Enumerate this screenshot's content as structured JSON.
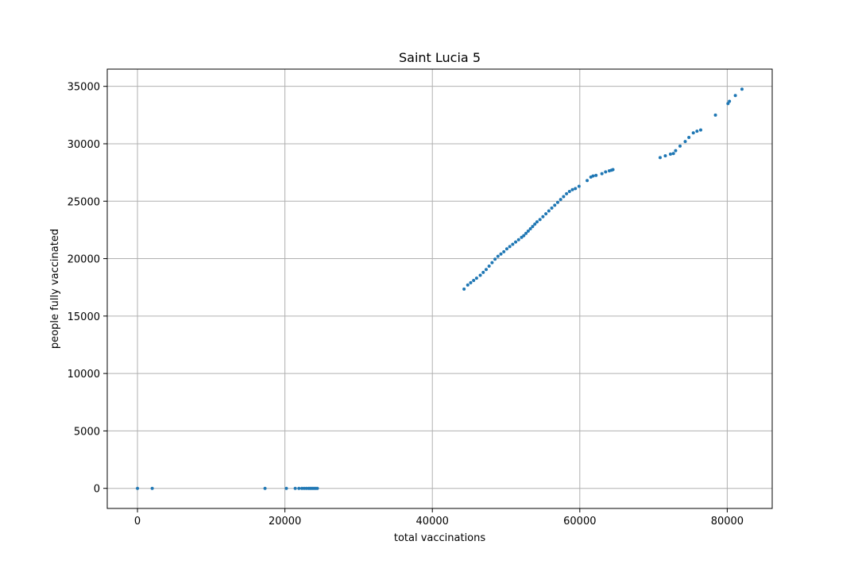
{
  "chart_data": {
    "type": "scatter",
    "title": "Saint Lucia 5",
    "xlabel": "total vaccinations",
    "ylabel": "people fully vaccinated",
    "xlim": [
      -4100,
      86100
    ],
    "ylim": [
      -1750,
      36500
    ],
    "xticks": [
      0,
      20000,
      40000,
      60000,
      80000
    ],
    "yticks": [
      0,
      5000,
      10000,
      15000,
      20000,
      25000,
      30000,
      35000
    ],
    "grid": true,
    "marker_color": "#1f77b4",
    "points": [
      [
        0,
        0
      ],
      [
        2000,
        0
      ],
      [
        17300,
        0
      ],
      [
        20200,
        0
      ],
      [
        21400,
        0
      ],
      [
        21900,
        0
      ],
      [
        22300,
        0
      ],
      [
        22600,
        0
      ],
      [
        22900,
        0
      ],
      [
        23200,
        0
      ],
      [
        23400,
        0
      ],
      [
        23600,
        0
      ],
      [
        23800,
        0
      ],
      [
        24000,
        0
      ],
      [
        24200,
        0
      ],
      [
        24400,
        0
      ],
      [
        44300,
        17350
      ],
      [
        44800,
        17700
      ],
      [
        45200,
        17900
      ],
      [
        45600,
        18100
      ],
      [
        46000,
        18300
      ],
      [
        46500,
        18550
      ],
      [
        46900,
        18800
      ],
      [
        47300,
        19050
      ],
      [
        47700,
        19350
      ],
      [
        48100,
        19650
      ],
      [
        48500,
        19950
      ],
      [
        48900,
        20200
      ],
      [
        49300,
        20400
      ],
      [
        49700,
        20600
      ],
      [
        50100,
        20850
      ],
      [
        50500,
        21050
      ],
      [
        50900,
        21250
      ],
      [
        51300,
        21450
      ],
      [
        51700,
        21650
      ],
      [
        52100,
        21850
      ],
      [
        52400,
        22000
      ],
      [
        52700,
        22200
      ],
      [
        53000,
        22400
      ],
      [
        53300,
        22600
      ],
      [
        53600,
        22800
      ],
      [
        53900,
        23000
      ],
      [
        54200,
        23200
      ],
      [
        54600,
        23400
      ],
      [
        55000,
        23650
      ],
      [
        55400,
        23900
      ],
      [
        55800,
        24150
      ],
      [
        56200,
        24400
      ],
      [
        56600,
        24650
      ],
      [
        57000,
        24900
      ],
      [
        57400,
        25150
      ],
      [
        57800,
        25400
      ],
      [
        58200,
        25650
      ],
      [
        58600,
        25850
      ],
      [
        59000,
        26000
      ],
      [
        59400,
        26100
      ],
      [
        59900,
        26300
      ],
      [
        61000,
        26800
      ],
      [
        61500,
        27100
      ],
      [
        61800,
        27200
      ],
      [
        62200,
        27250
      ],
      [
        63000,
        27400
      ],
      [
        63500,
        27550
      ],
      [
        64000,
        27650
      ],
      [
        64300,
        27700
      ],
      [
        64500,
        27750
      ],
      [
        70900,
        28800
      ],
      [
        71600,
        28950
      ],
      [
        72300,
        29100
      ],
      [
        72700,
        29150
      ],
      [
        73000,
        29400
      ],
      [
        73600,
        29800
      ],
      [
        74300,
        30200
      ],
      [
        74800,
        30550
      ],
      [
        75400,
        30950
      ],
      [
        75900,
        31100
      ],
      [
        76400,
        31200
      ],
      [
        78400,
        32500
      ],
      [
        80100,
        33500
      ],
      [
        80300,
        33700
      ],
      [
        81100,
        34200
      ],
      [
        82000,
        34750
      ]
    ]
  }
}
